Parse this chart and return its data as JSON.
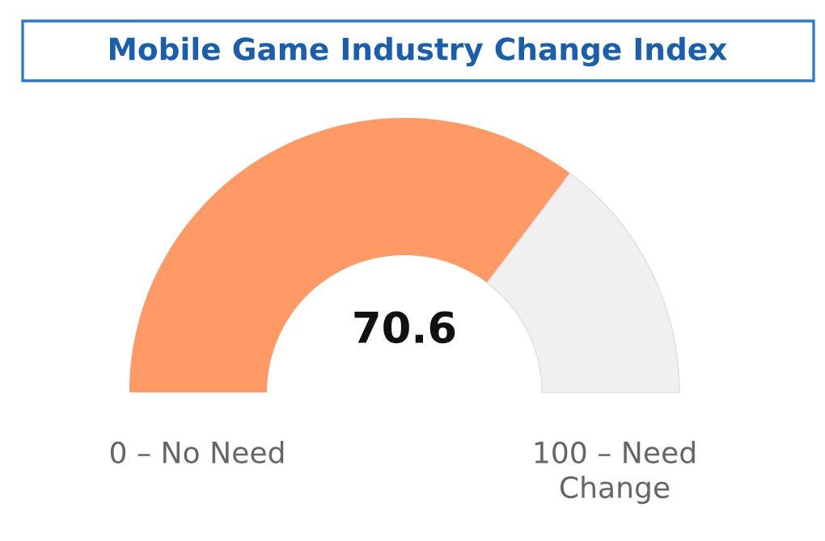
{
  "chart_data": {
    "type": "donut",
    "title": "Mobile Game Industry Change Index",
    "categories": [
      null,
      null
    ],
    "values": [
      70.6,
      29.4
    ],
    "colors": [
      "#ff9966",
      "#f0f0f0"
    ],
    "value_labels": [
      "70.6",
      null
    ],
    "annotations": [
      "0 – No Need",
      "100 – Need\nChange"
    ]
  }
}
